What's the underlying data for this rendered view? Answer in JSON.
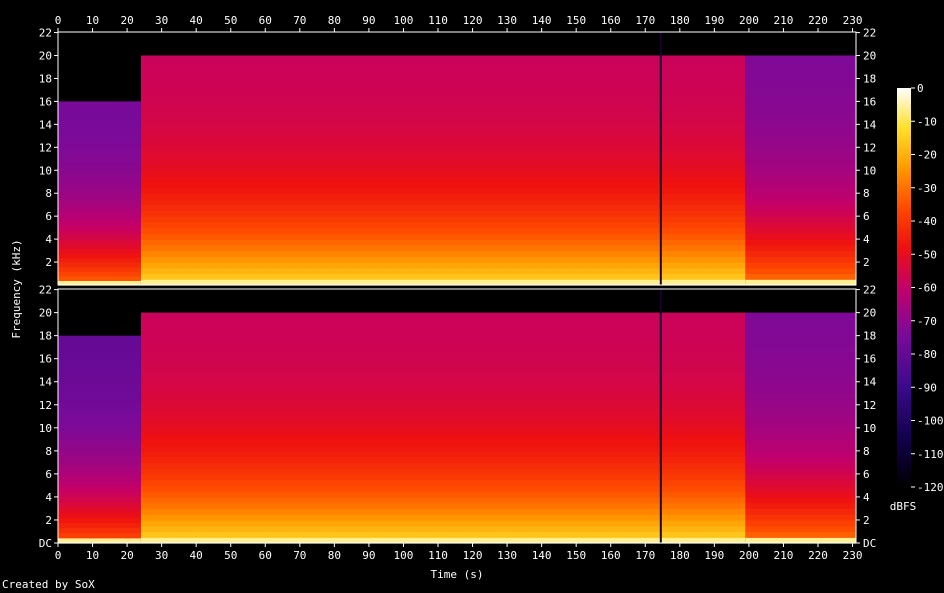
{
  "chart_data": {
    "type": "heatmap",
    "xlabel": "Time (s)",
    "ylabel": "Frequency (kHz)",
    "x_ticks": [
      "0",
      "10",
      "20",
      "30",
      "40",
      "50",
      "60",
      "70",
      "80",
      "90",
      "100",
      "110",
      "120",
      "130",
      "140",
      "150",
      "160",
      "170",
      "180",
      "190",
      "200",
      "210",
      "220",
      "230"
    ],
    "y_ticks": [
      "DC",
      "2",
      "4",
      "6",
      "8",
      "10",
      "12",
      "14",
      "16",
      "18",
      "20",
      "22"
    ],
    "y_ticks_top": [
      "2",
      "4",
      "6",
      "8",
      "10",
      "12",
      "14",
      "16",
      "18",
      "20",
      "22"
    ],
    "xlim": [
      0,
      231
    ],
    "ylim_khz": [
      0,
      22.05
    ],
    "colorbar": {
      "label": "dBFS",
      "ticks": [
        "0",
        "-10",
        "-20",
        "-30",
        "-40",
        "-50",
        "-60",
        "-70",
        "-80",
        "-90",
        "-100",
        "-110",
        "-120"
      ],
      "range": [
        -120,
        0
      ]
    },
    "channels": [
      {
        "segments": [
          {
            "t": [
              0,
              24
            ],
            "cutoff_khz": 16,
            "level_db": -70
          },
          {
            "t": [
              24,
              199
            ],
            "cutoff_khz": 20,
            "level_db": -52
          },
          {
            "t": [
              199,
              231
            ],
            "cutoff_khz": 20,
            "level_db": -68
          }
        ]
      },
      {
        "segments": [
          {
            "t": [
              0,
              24
            ],
            "cutoff_khz": 18,
            "level_db": -74
          },
          {
            "t": [
              24,
              199
            ],
            "cutoff_khz": 20,
            "level_db": -52
          },
          {
            "t": [
              199,
              231
            ],
            "cutoff_khz": 20,
            "level_db": -68
          }
        ]
      }
    ],
    "dropouts_s": [
      174.5
    ]
  },
  "footer": {
    "credit": "Created by SoX"
  }
}
